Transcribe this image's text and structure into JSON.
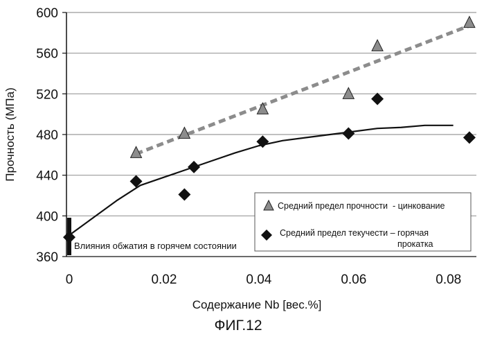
{
  "chart_data": {
    "type": "scatter",
    "title": "",
    "xlabel": "Содержание Nb [вес.%]",
    "ylabel": "Прочность (МПа)",
    "xlim": [
      0,
      0.085
    ],
    "ylim": [
      360,
      600
    ],
    "x_ticks": [
      0,
      0.02,
      0.04,
      0.06,
      0.08
    ],
    "x_tick_labels": [
      "0",
      "0.02",
      "0.04",
      "0.06",
      "0.08"
    ],
    "y_ticks": [
      360,
      400,
      440,
      480,
      520,
      560,
      600
    ],
    "y_tick_labels": [
      "360",
      "400",
      "440",
      "480",
      "520",
      "560",
      "600"
    ],
    "grid": "horizontal",
    "legend_position": "bottom-right",
    "series": [
      {
        "name": "Средний предел прочности - цинкование",
        "marker": "triangle",
        "color": "#8c8c8c",
        "x": [
          0.0141,
          0.0243,
          0.0408,
          0.0589,
          0.065,
          0.0844
        ],
        "y": [
          462,
          481,
          505,
          520,
          567,
          590
        ]
      },
      {
        "name": "Средний предел текучести – горячая прокатка",
        "marker": "diamond",
        "color": "#111111",
        "x": [
          0.0,
          0.0141,
          0.0243,
          0.0263,
          0.0408,
          0.0589,
          0.065,
          0.0844
        ],
        "y": [
          379,
          434,
          421,
          448,
          473,
          481,
          515,
          477
        ]
      }
    ],
    "trend_lines": [
      {
        "series": "Средний предел прочности - цинкование",
        "style": "dashed",
        "color": "#8c8c8c",
        "x": [
          0.0141,
          0.0844
        ],
        "y": [
          461,
          587
        ]
      },
      {
        "series": "Средний предел текучести – горячая прокатка",
        "style": "solid",
        "color": "#111111",
        "x": [
          0.0,
          0.005,
          0.01,
          0.015,
          0.02,
          0.025,
          0.03,
          0.035,
          0.04,
          0.045,
          0.05,
          0.055,
          0.06,
          0.065,
          0.07,
          0.075,
          0.081
        ],
        "y": [
          381,
          398,
          415,
          430,
          438,
          446,
          454,
          462,
          469,
          474,
          477,
          480,
          483,
          486,
          487,
          489,
          489
        ]
      }
    ],
    "annotations": [
      {
        "text": "Влияния обжатия в горячем состоянии",
        "marker": "vertical-bar",
        "x": 0.0,
        "y_range": [
          362,
          396
        ]
      }
    ],
    "legend": {
      "items": [
        {
          "label_line1": "Средний предел прочности  - цинкование",
          "label_line2": "",
          "marker": "triangle"
        },
        {
          "label_line1": "Средний предел текучести – горячая",
          "label_line2": "прокатка",
          "marker": "diamond"
        }
      ]
    },
    "caption": "ФИГ.12"
  }
}
